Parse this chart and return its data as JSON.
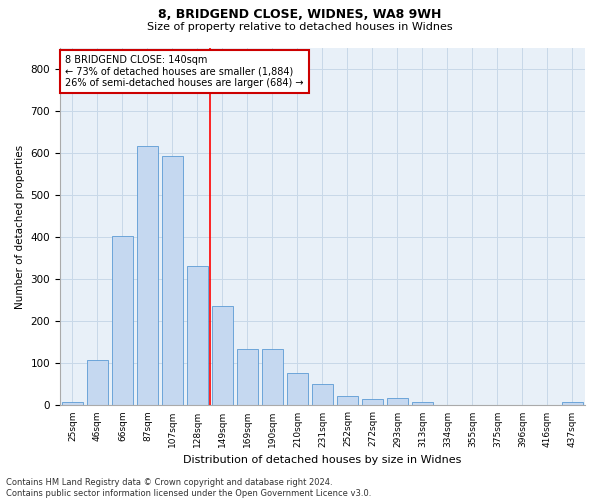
{
  "title1": "8, BRIDGEND CLOSE, WIDNES, WA8 9WH",
  "title2": "Size of property relative to detached houses in Widnes",
  "xlabel": "Distribution of detached houses by size in Widnes",
  "ylabel": "Number of detached properties",
  "bar_labels": [
    "25sqm",
    "46sqm",
    "66sqm",
    "87sqm",
    "107sqm",
    "128sqm",
    "149sqm",
    "169sqm",
    "190sqm",
    "210sqm",
    "231sqm",
    "252sqm",
    "272sqm",
    "293sqm",
    "313sqm",
    "334sqm",
    "355sqm",
    "375sqm",
    "396sqm",
    "416sqm",
    "437sqm"
  ],
  "bar_values": [
    7,
    107,
    403,
    615,
    593,
    330,
    237,
    134,
    134,
    78,
    52,
    23,
    15,
    18,
    8,
    0,
    0,
    0,
    0,
    0,
    8
  ],
  "bar_color": "#c5d8f0",
  "bar_edge_color": "#5b9bd5",
  "grid_color": "#c8d8e8",
  "bg_color": "#e8f0f8",
  "red_line_x": 5.5,
  "annotation_text": "8 BRIDGEND CLOSE: 140sqm\n← 73% of detached houses are smaller (1,884)\n26% of semi-detached houses are larger (684) →",
  "annotation_box_color": "#ffffff",
  "annotation_box_edge": "#cc0000",
  "footer": "Contains HM Land Registry data © Crown copyright and database right 2024.\nContains public sector information licensed under the Open Government Licence v3.0.",
  "ylim": [
    0,
    850
  ],
  "yticks": [
    0,
    100,
    200,
    300,
    400,
    500,
    600,
    700,
    800
  ]
}
